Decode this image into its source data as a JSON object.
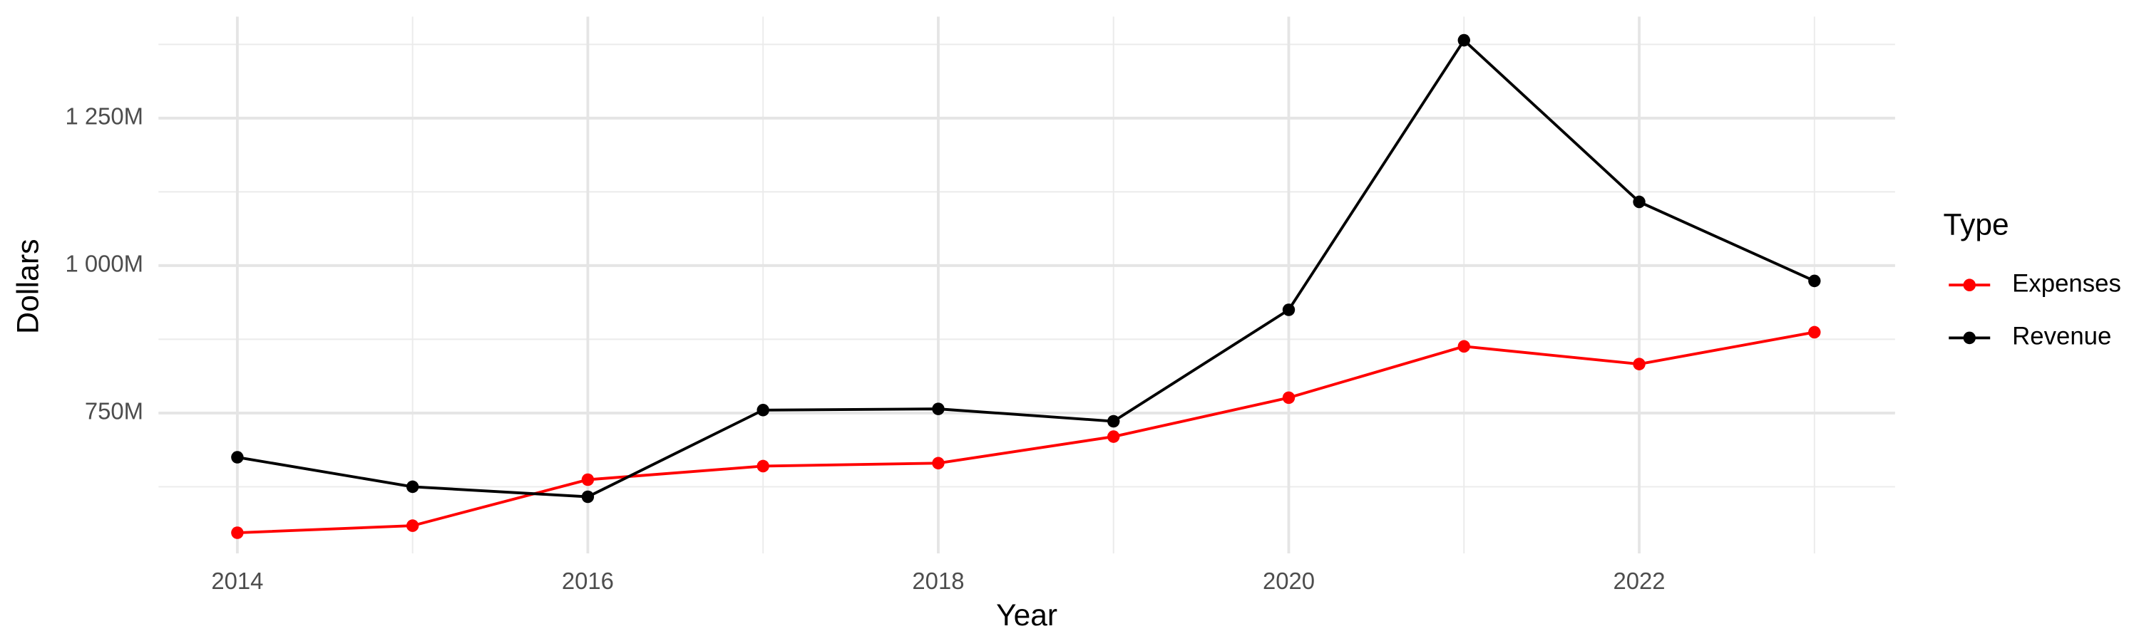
{
  "chart_data": {
    "type": "line",
    "x_label": "Year",
    "y_label": "Dollars",
    "legend_title": "Type",
    "x": [
      2014,
      2015,
      2016,
      2017,
      2018,
      2019,
      2020,
      2021,
      2022,
      2023
    ],
    "series": [
      {
        "name": "Expenses",
        "color": "#ff0000",
        "values": [
          547,
          559,
          637,
          660,
          665,
          710,
          776,
          863,
          833,
          887
        ]
      },
      {
        "name": "Revenue",
        "color": "#000000",
        "values": [
          675,
          625,
          608,
          755,
          757,
          736,
          925,
          1382,
          1108,
          974
        ]
      }
    ],
    "xlim": [
      2013.55,
      2023.46
    ],
    "xticks": [
      2014,
      2016,
      2018,
      2020,
      2022
    ],
    "x_minor_ticks": [
      2015,
      2017,
      2019,
      2021,
      2023
    ],
    "ylim": [
      512,
      1422
    ],
    "yticks": [
      {
        "value": 750,
        "label": "750M"
      },
      {
        "value": 1000,
        "label": "1 000M"
      },
      {
        "value": 1250,
        "label": "1 250M"
      }
    ],
    "y_minor_ticks": [
      625,
      875,
      1125,
      1375
    ],
    "grid": true,
    "legend": "right"
  }
}
